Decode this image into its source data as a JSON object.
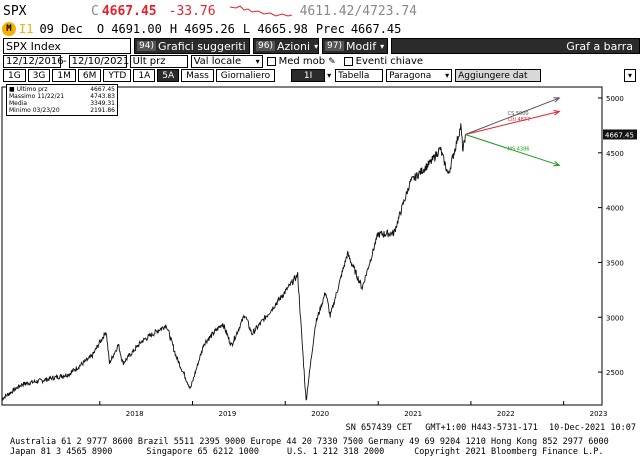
{
  "quote": {
    "ticker": "SPX",
    "last": "4667.45",
    "change": "-33.76",
    "series_hint": "4611.42/4723.74",
    "line2_badge": "I1",
    "date": "09 Dec",
    "open": "O 4691.00",
    "high": "H 4695.26",
    "low": "L 4665.98",
    "prev_label": "Prec",
    "prev_value": "4667.45",
    "chart_marker": "C"
  },
  "toolbar": {
    "security": "SPX Index",
    "btn1_num": "94)",
    "btn1_label": "Grafici suggeriti",
    "btn2_num": "96)",
    "btn2_label": "Azioni",
    "btn3_num": "97)",
    "btn3_label": "Modif",
    "right_label": "Graf a barra"
  },
  "range": {
    "start": "12/12/2016",
    "end": "12/10/2021",
    "field": "Ult prz",
    "currency": "Val locale",
    "med_mob": "Med mob",
    "eventi": "Eventi chiave"
  },
  "periods": [
    "1G",
    "3G",
    "1M",
    "6M",
    "YTD",
    "1A",
    "5A",
    "Mass",
    "Giornaliero"
  ],
  "period_active": "5A",
  "tabs": {
    "interval": "1I",
    "tabella": "Tabella",
    "paragona": "Paragona",
    "aggiungere": "Aggiungere dat"
  },
  "legend": [
    {
      "label": "Ultimo prz",
      "value": "4667.45"
    },
    {
      "label": "Massimo 11/22/21",
      "value": "4743.83"
    },
    {
      "label": "Media",
      "value": "3349.31"
    },
    {
      "label": "Minimo 03/23/20",
      "value": "2191.86"
    }
  ],
  "last_price_tag": "4667.45",
  "colors": {
    "accent_red": "#e8202a",
    "price_line": "#111111",
    "upper": "#555555",
    "mid": "#e8202a",
    "lower": "#1a9a1a"
  },
  "chart_data": {
    "type": "line",
    "x": [
      "2016-12-12",
      "2017-03-01",
      "2017-06-01",
      "2017-09-01",
      "2017-12-01",
      "2018-01-26",
      "2018-02-08",
      "2018-03-15",
      "2018-04-02",
      "2018-06-15",
      "2018-09-20",
      "2018-10-29",
      "2018-12-24",
      "2019-02-15",
      "2019-04-30",
      "2019-06-03",
      "2019-07-26",
      "2019-08-23",
      "2019-10-15",
      "2019-12-31",
      "2020-02-19",
      "2020-03-23",
      "2020-04-29",
      "2020-06-08",
      "2020-06-26",
      "2020-09-02",
      "2020-10-30",
      "2020-12-31",
      "2021-03-04",
      "2021-05-07",
      "2021-07-29",
      "2021-09-02",
      "2021-10-04",
      "2021-11-22",
      "2021-12-01",
      "2021-12-10"
    ],
    "values": [
      2257,
      2390,
      2430,
      2480,
      2645,
      2872,
      2581,
      2750,
      2581,
      2780,
      2930,
      2640,
      2351,
      2760,
      2945,
      2744,
      3025,
      2847,
      3000,
      3230,
      3386,
      2237,
      2940,
      3232,
      3009,
      3580,
      3270,
      3756,
      3768,
      4232,
      4419,
      4537,
      4300,
      4743,
      4513,
      4667
    ],
    "ylim": [
      2200,
      5100
    ],
    "yticks": [
      2500,
      3000,
      3500,
      4000,
      4500,
      5000
    ],
    "xtick_labels": [
      "2018",
      "2019",
      "2020",
      "2021",
      "2022",
      "2023"
    ],
    "projections": [
      {
        "label": "CS 5000",
        "value": 5000
      },
      {
        "label": "Citi 4877",
        "value": 4877
      },
      {
        "label": "MS 4386",
        "value": 4386
      }
    ]
  },
  "status": {
    "session": "SN 657439 CET",
    "gmt": "GMT+1:00 H443-5731-171",
    "date": "10-Dec-2021 10:07"
  },
  "footer": {
    "line1": "Australia 61 2 9777 8600 Brazil 5511 2395 9000 Europe 44 20 7330 7500 Germany 49 69 9204 1210 Hong Kong 852 2977 6000",
    "line2a": "Japan 81 3 4565 8900",
    "line2b": "Singapore 65 6212 1000",
    "line2c": "U.S. 1 212 318 2000",
    "line2d": "Copyright 2021 Bloomberg Finance L.P."
  }
}
